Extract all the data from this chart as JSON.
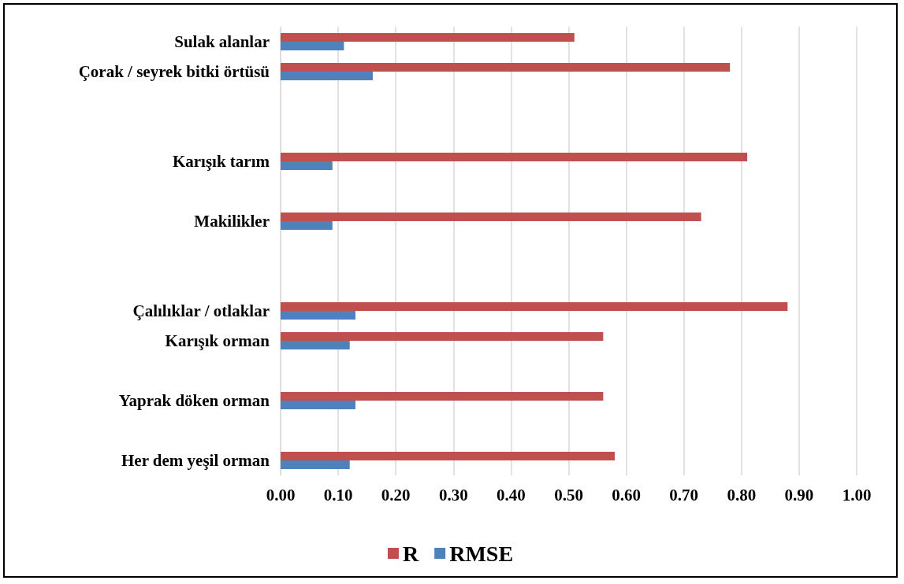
{
  "chart_data": {
    "type": "bar",
    "orientation": "horizontal",
    "categories": [
      "Sulak alanlar",
      "Çorak / seyrek bitki örtüsü",
      null,
      null,
      "Karışık tarım",
      null,
      "Makilikler",
      null,
      null,
      "Çalılıklar / otlaklar",
      "Karışık orman",
      null,
      "Yaprak döken orman",
      null,
      "Her dem yeşil orman"
    ],
    "series": [
      {
        "name": "R",
        "color": "#c0504d",
        "values": [
          0.51,
          0.78,
          null,
          null,
          0.81,
          null,
          0.73,
          null,
          null,
          0.88,
          0.56,
          null,
          0.56,
          null,
          0.58
        ]
      },
      {
        "name": "RMSE",
        "color": "#4f81bd",
        "values": [
          0.11,
          0.16,
          null,
          null,
          0.09,
          null,
          0.09,
          null,
          null,
          0.13,
          0.12,
          null,
          0.13,
          null,
          0.12
        ]
      }
    ],
    "xlim": [
      0,
      1
    ],
    "xticks": [
      {
        "value": 0,
        "label": "0.00"
      },
      {
        "value": 0.1,
        "label": "0.10"
      },
      {
        "value": 0.2,
        "label": "0.20"
      },
      {
        "value": 0.3,
        "label": "0.30"
      },
      {
        "value": 0.4,
        "label": "0.40"
      },
      {
        "value": 0.5,
        "label": "0.50"
      },
      {
        "value": 0.6,
        "label": "0.60"
      },
      {
        "value": 0.7,
        "label": "0.70"
      },
      {
        "value": 0.8,
        "label": "0.80"
      },
      {
        "value": 0.9,
        "label": "0.90"
      },
      {
        "value": 1,
        "label": "1.00"
      }
    ],
    "grid": "x",
    "legend": "bottom"
  }
}
